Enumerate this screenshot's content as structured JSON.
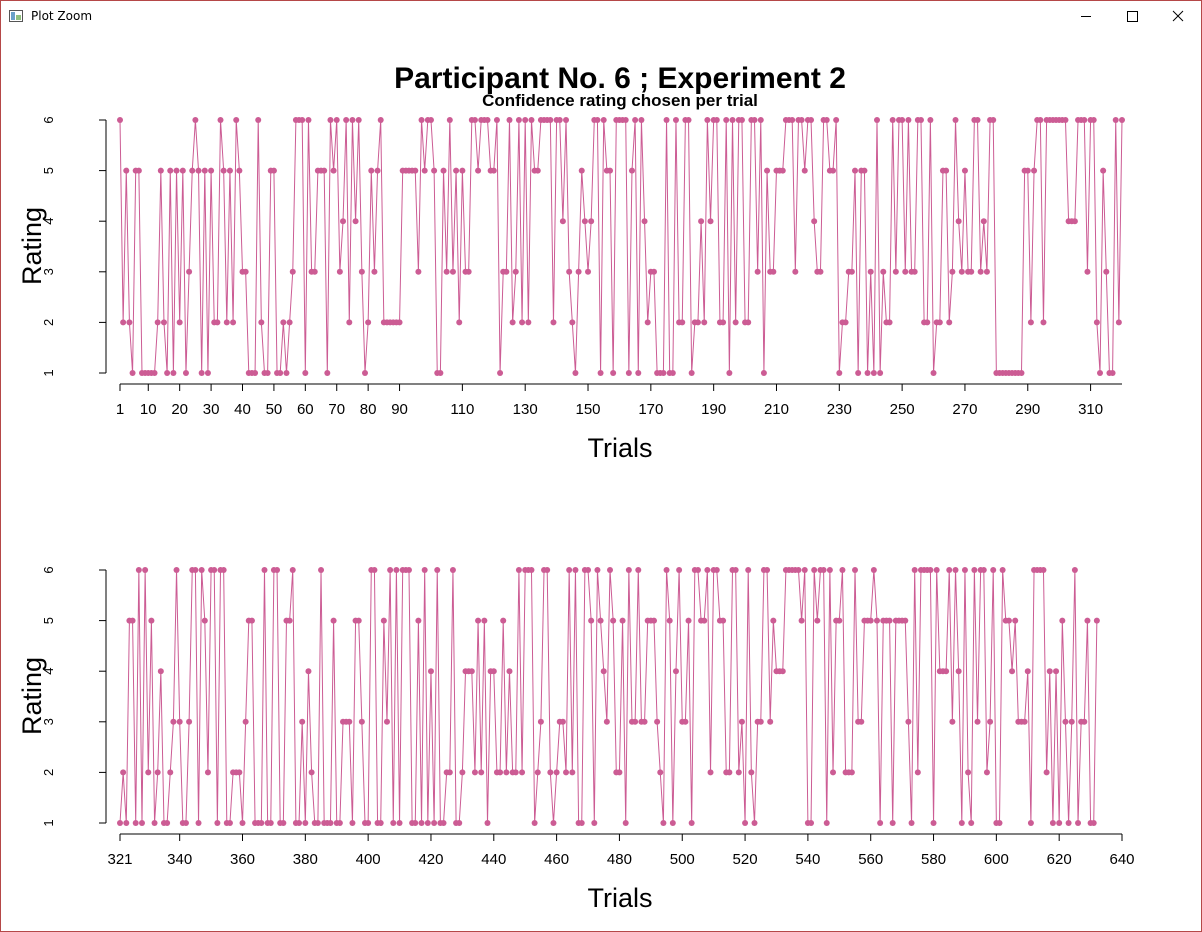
{
  "window": {
    "title": "Plot Zoom",
    "icons": {
      "app": "plot-app-icon",
      "minimize": "minimize-icon",
      "maximize": "maximize-icon",
      "close": "close-icon"
    }
  },
  "colors": {
    "series": "#cc5c94",
    "axis": "#000000",
    "window_border": "#b54848"
  },
  "chart_data": [
    {
      "type": "line",
      "title": "Participant No. 6 ; Experiment 2",
      "subtitle": "Confidence rating chosen per trial",
      "xlabel": "Trials",
      "ylabel": "Rating",
      "xlim": [
        1,
        320
      ],
      "ylim": [
        1,
        6
      ],
      "xticks": [
        1,
        10,
        20,
        30,
        40,
        50,
        60,
        70,
        80,
        90,
        110,
        130,
        150,
        170,
        190,
        210,
        230,
        250,
        270,
        290,
        310
      ],
      "yticks": [
        1,
        2,
        3,
        4,
        5,
        6
      ],
      "grid": false,
      "legend": "none",
      "x_start": 1,
      "y": [
        6,
        2,
        5,
        2,
        1,
        5,
        5,
        1,
        1,
        1,
        1,
        1,
        2,
        5,
        2,
        1,
        5,
        1,
        5,
        2,
        5,
        1,
        3,
        5,
        6,
        5,
        1,
        5,
        1,
        5,
        2,
        2,
        6,
        5,
        2,
        5,
        2,
        6,
        5,
        3,
        3,
        1,
        1,
        1,
        6,
        2,
        1,
        1,
        5,
        5,
        1,
        1,
        2,
        1,
        2,
        3,
        6,
        6,
        6,
        1,
        6,
        3,
        3,
        5,
        5,
        5,
        1,
        6,
        5,
        6,
        3,
        4,
        6,
        2,
        6,
        4,
        6,
        3,
        1,
        2,
        5,
        3,
        5,
        6,
        2,
        2,
        2,
        2,
        2,
        2,
        5,
        5,
        5,
        5,
        5,
        3,
        6,
        5,
        6,
        6,
        5,
        1,
        1,
        5,
        3,
        6,
        3,
        5,
        2,
        5,
        3,
        3,
        6,
        6,
        5,
        6,
        6,
        6,
        5,
        5,
        6,
        1,
        3,
        3,
        6,
        2,
        3,
        6,
        2,
        6,
        2,
        6,
        5,
        5,
        6,
        6,
        6,
        6,
        2,
        6,
        6,
        4,
        6,
        3,
        2,
        1,
        3,
        5,
        4,
        3,
        4,
        6,
        6,
        1,
        6,
        5,
        5,
        1,
        6,
        6,
        6,
        6,
        1,
        5,
        6,
        1,
        6,
        4,
        2,
        3,
        3,
        1,
        1,
        1,
        6,
        1,
        1,
        6,
        2,
        2,
        6,
        6,
        1,
        2,
        2,
        4,
        2,
        6,
        4,
        6,
        6,
        2,
        2,
        6,
        1,
        6,
        2,
        6,
        6,
        2,
        2,
        6,
        6,
        3,
        6,
        1,
        5,
        3,
        3,
        5,
        5,
        5,
        6,
        6,
        6,
        3,
        6,
        6,
        5,
        6,
        6,
        4,
        3,
        3,
        6,
        6,
        5,
        5,
        6,
        1,
        2,
        2,
        3,
        3,
        5,
        1,
        5,
        5,
        1,
        3,
        1,
        6,
        1,
        3,
        2,
        2,
        6,
        3,
        6,
        6,
        3,
        6,
        3,
        3,
        6,
        6,
        2,
        2,
        6,
        1,
        2,
        2,
        5,
        5,
        2,
        3,
        6,
        4,
        3,
        5,
        3,
        3,
        6,
        6,
        3,
        4,
        3,
        6,
        6,
        1,
        1,
        1,
        1,
        1,
        1,
        1,
        1,
        1,
        5,
        5,
        2,
        5,
        6,
        6,
        2,
        6,
        6,
        6,
        6,
        6,
        6,
        6,
        4,
        4,
        4,
        6,
        6,
        6,
        3,
        6,
        6,
        2,
        1,
        5,
        3,
        1,
        1,
        6,
        2,
        6
      ]
    },
    {
      "type": "line",
      "title": "",
      "xlabel": "Trials",
      "ylabel": "Rating",
      "xlim": [
        321,
        640
      ],
      "ylim": [
        1,
        6
      ],
      "xticks": [
        321,
        340,
        360,
        380,
        400,
        420,
        440,
        460,
        480,
        500,
        520,
        540,
        560,
        580,
        600,
        620,
        640
      ],
      "yticks": [
        1,
        2,
        3,
        4,
        5,
        6
      ],
      "grid": false,
      "legend": "none",
      "x_start": 321,
      "y": [
        1,
        2,
        1,
        5,
        5,
        1,
        6,
        1,
        6,
        2,
        5,
        1,
        2,
        4,
        1,
        1,
        2,
        3,
        6,
        3,
        1,
        1,
        3,
        6,
        6,
        1,
        6,
        5,
        2,
        6,
        6,
        1,
        6,
        6,
        1,
        1,
        2,
        2,
        2,
        1,
        3,
        5,
        5,
        1,
        1,
        1,
        6,
        1,
        1,
        6,
        6,
        1,
        1,
        5,
        5,
        6,
        1,
        1,
        3,
        1,
        4,
        2,
        1,
        1,
        6,
        1,
        1,
        1,
        5,
        1,
        1,
        3,
        3,
        3,
        1,
        5,
        5,
        3,
        1,
        1,
        6,
        6,
        1,
        1,
        5,
        3,
        6,
        1,
        6,
        1,
        6,
        6,
        6,
        1,
        1,
        5,
        1,
        6,
        1,
        4,
        1,
        6,
        1,
        1,
        2,
        2,
        6,
        1,
        1,
        2,
        4,
        4,
        4,
        2,
        5,
        2,
        5,
        1,
        4,
        4,
        2,
        2,
        5,
        2,
        4,
        2,
        2,
        6,
        2,
        6,
        6,
        6,
        1,
        2,
        3,
        6,
        6,
        2,
        1,
        2,
        3,
        3,
        2,
        6,
        2,
        6,
        1,
        1,
        6,
        6,
        5,
        1,
        6,
        5,
        4,
        3,
        6,
        5,
        2,
        2,
        5,
        1,
        6,
        3,
        3,
        6,
        3,
        3,
        5,
        5,
        5,
        3,
        2,
        1,
        6,
        5,
        1,
        4,
        6,
        3,
        3,
        5,
        1,
        6,
        6,
        5,
        5,
        6,
        2,
        6,
        6,
        5,
        5,
        2,
        2,
        6,
        6,
        2,
        3,
        1,
        6,
        2,
        1,
        3,
        3,
        6,
        6,
        3,
        5,
        4,
        4,
        4,
        6,
        6,
        6,
        6,
        6,
        5,
        6,
        1,
        1,
        6,
        5,
        6,
        6,
        1,
        6,
        2,
        5,
        5,
        6,
        2,
        2,
        2,
        6,
        3,
        3,
        5,
        5,
        5,
        6,
        5,
        1,
        5,
        5,
        5,
        1,
        5,
        5,
        5,
        5,
        3,
        1,
        6,
        2,
        6,
        6,
        6,
        6,
        1,
        6,
        4,
        4,
        4,
        6,
        3,
        6,
        4,
        1,
        6,
        2,
        1,
        6,
        3,
        6,
        6,
        2,
        3,
        6,
        1,
        1,
        6,
        5,
        5,
        4,
        5,
        3,
        3,
        3,
        4,
        1,
        6,
        6,
        6,
        6,
        2,
        4,
        1,
        4,
        1,
        5,
        3,
        1,
        3,
        6,
        1,
        3,
        3,
        5,
        1,
        1,
        5
      ]
    }
  ]
}
